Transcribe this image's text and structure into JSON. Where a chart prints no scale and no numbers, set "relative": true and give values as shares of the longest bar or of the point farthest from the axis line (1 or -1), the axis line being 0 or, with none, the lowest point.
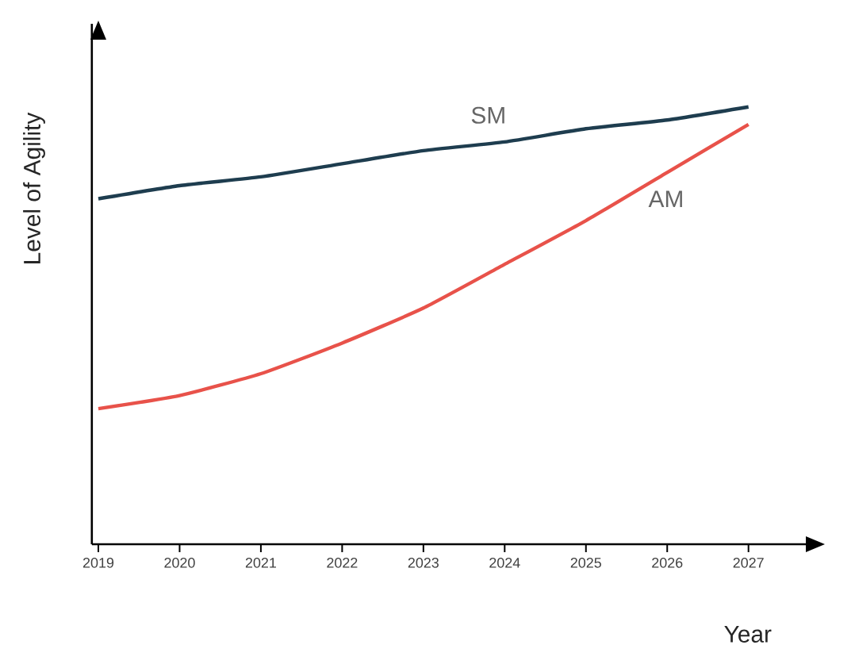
{
  "chart_data": {
    "type": "line",
    "relative": true,
    "xlabel": "Year",
    "ylabel": "Level of Agility",
    "categories": [
      "2019",
      "2020",
      "2021",
      "2022",
      "2023",
      "2024",
      "2025",
      "2026",
      "2027"
    ],
    "series": [
      {
        "name": "SM",
        "color": "#1e3d4f",
        "values": [
          0.79,
          0.82,
          0.84,
          0.87,
          0.9,
          0.92,
          0.95,
          0.97,
          1.0
        ]
      },
      {
        "name": "AM",
        "color": "#e8524a",
        "values": [
          0.31,
          0.34,
          0.39,
          0.46,
          0.54,
          0.64,
          0.74,
          0.85,
          0.96
        ]
      }
    ],
    "grid": false,
    "legend": false,
    "marker": "none",
    "line_style": "solid"
  }
}
